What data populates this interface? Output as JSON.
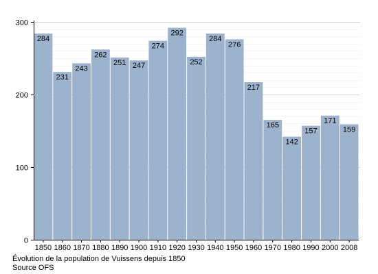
{
  "chart_data": {
    "type": "bar",
    "categories": [
      "1850",
      "1860",
      "1870",
      "1880",
      "1890",
      "1900",
      "1910",
      "1920",
      "1930",
      "1940",
      "1950",
      "1960",
      "1970",
      "1980",
      "1990",
      "2000",
      "2008"
    ],
    "values": [
      284,
      231,
      243,
      262,
      251,
      247,
      274,
      292,
      252,
      284,
      276,
      217,
      165,
      142,
      157,
      171,
      159
    ],
    "ylim": [
      0,
      300
    ],
    "yticks": [
      0,
      100,
      200,
      300
    ],
    "grid": true,
    "bar_color": "#9db3cd",
    "title": "",
    "xlabel": "",
    "ylabel": ""
  },
  "caption": {
    "line1": "Évolution de la population de Vuissens depuis 1850",
    "line2": "Source OFS"
  }
}
